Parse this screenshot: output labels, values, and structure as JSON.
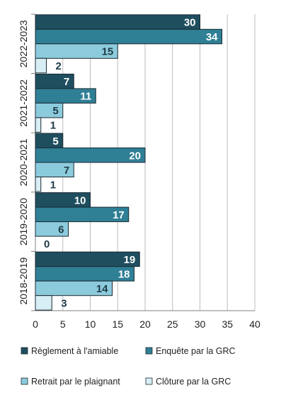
{
  "chart_data": {
    "type": "bar",
    "orientation": "horizontal",
    "categories": [
      "2022-2023",
      "2021-2022",
      "2020-2021",
      "2019-2020",
      "2018-2019"
    ],
    "series": [
      {
        "name": "Règlement à l'amiable",
        "color": "#1f4e5f",
        "values": [
          30,
          7,
          5,
          10,
          19
        ]
      },
      {
        "name": "Enquête par la GRC",
        "color": "#2f7f95",
        "values": [
          34,
          11,
          20,
          17,
          18
        ]
      },
      {
        "name": "Retrait par le plaignant",
        "color": "#8ccbdc",
        "values": [
          15,
          5,
          7,
          6,
          14
        ]
      },
      {
        "name": "Clôture par la GRC",
        "color": "#d8eef5",
        "values": [
          2,
          1,
          1,
          0,
          3
        ]
      }
    ],
    "xticks": [
      0,
      5,
      10,
      15,
      20,
      25,
      30,
      35,
      40
    ],
    "xlim": [
      0,
      40
    ],
    "grid": true,
    "legend_position": "bottom"
  }
}
